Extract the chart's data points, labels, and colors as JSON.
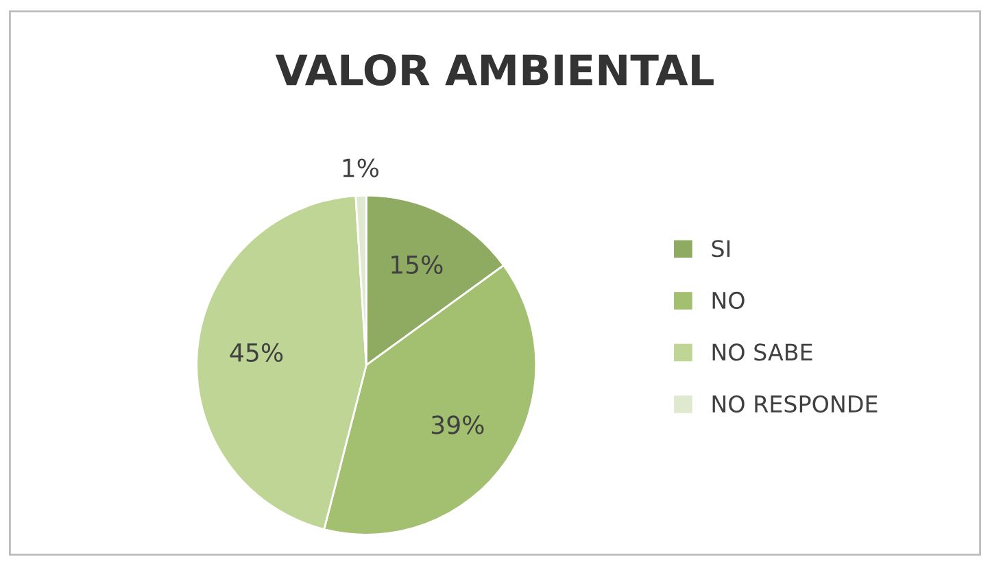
{
  "chart_data": {
    "type": "pie",
    "title": "VALOR AMBIENTAL",
    "categories": [
      "SI",
      "NO",
      "NO SABE",
      "NO RESPONDE"
    ],
    "values": [
      15,
      39,
      45,
      1
    ],
    "colors": [
      "#8fab62",
      "#a3c070",
      "#bed596",
      "#dfe9cf"
    ],
    "value_labels": [
      "15%",
      "39%",
      "45%",
      "1%"
    ],
    "legend": "right"
  }
}
